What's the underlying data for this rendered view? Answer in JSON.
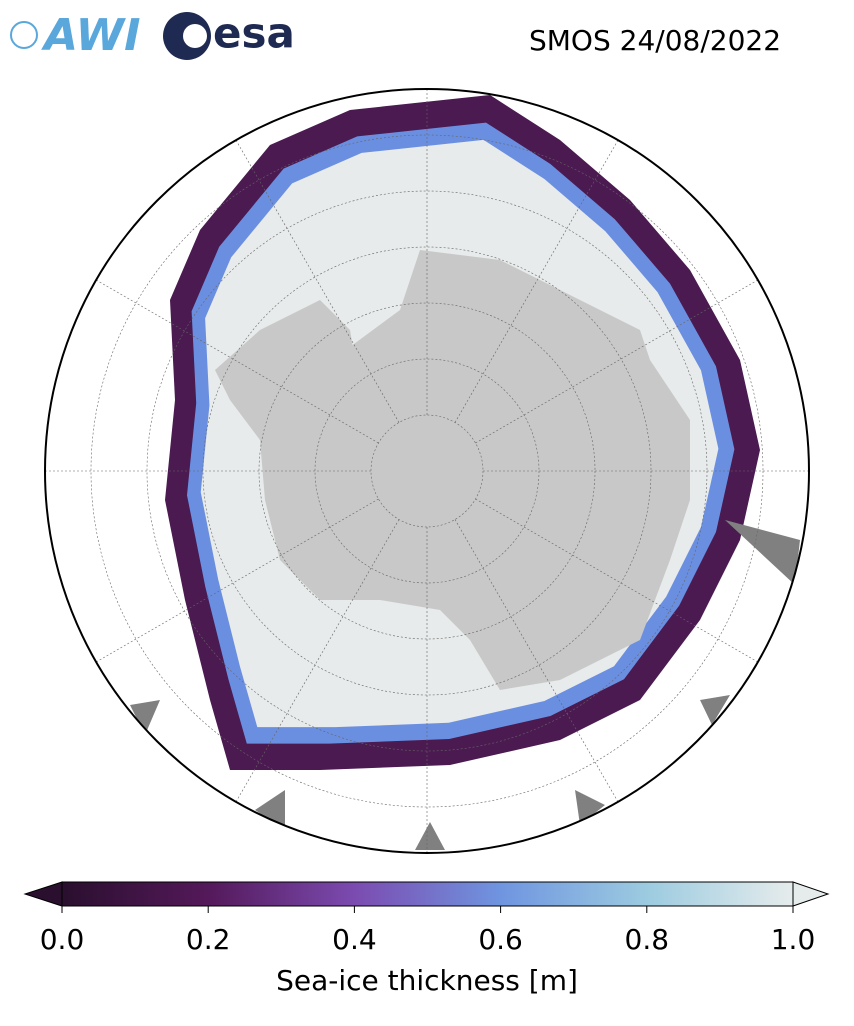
{
  "header": {
    "logo_left": "AWI",
    "logo_right": "esa",
    "title": "SMOS 24/08/2022"
  },
  "colorbar": {
    "label": "Sea-ice thickness [m]",
    "lim": [
      0,
      1
    ],
    "ticks": [
      {
        "value": 0,
        "label": "0.0"
      },
      {
        "value": 0.2,
        "label": "0.2"
      },
      {
        "value": 0.4,
        "label": "0.4"
      },
      {
        "value": 0.6,
        "label": "0.6"
      },
      {
        "value": 0.8,
        "label": "0.8"
      },
      {
        "value": 1,
        "label": "1.0"
      }
    ],
    "colormap": [
      "#2a0f2e",
      "#54195a",
      "#7b4bb0",
      "#6f95e0",
      "#9ccbe0",
      "#e6ecec"
    ]
  }
}
